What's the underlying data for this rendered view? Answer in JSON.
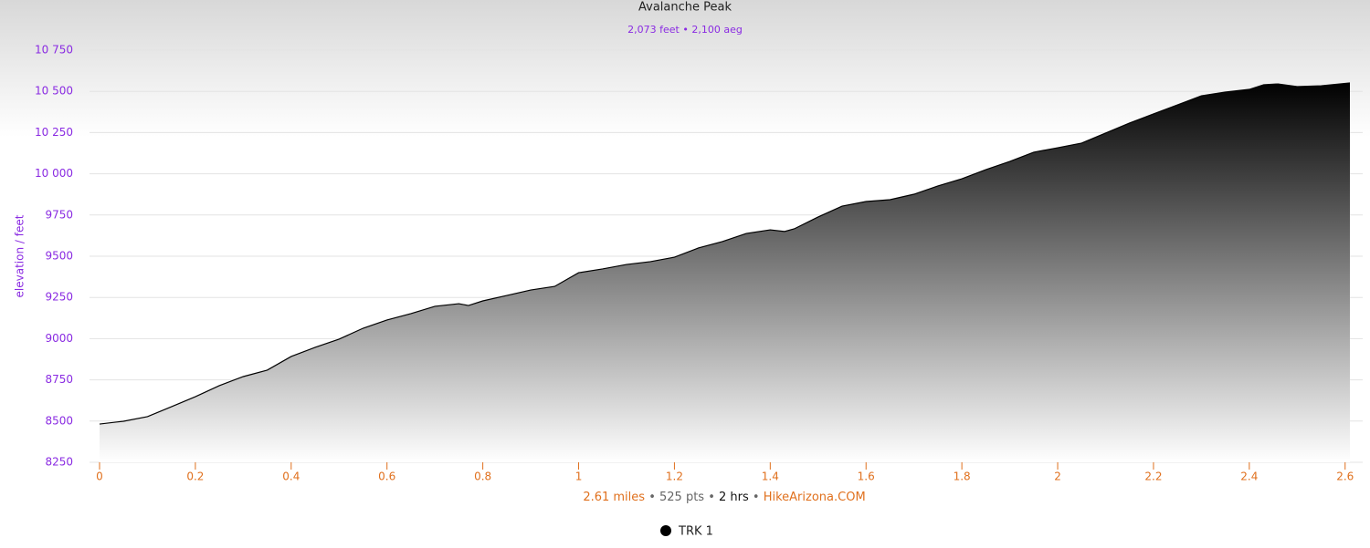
{
  "chart_data": {
    "type": "area",
    "title": "Avalanche Peak",
    "subtitle": "2,073 feet • 2,100 aeg",
    "y_label": "elevation / feet",
    "x": [
      0,
      0.05,
      0.1,
      0.15,
      0.2,
      0.25,
      0.3,
      0.35,
      0.4,
      0.45,
      0.5,
      0.55,
      0.6,
      0.65,
      0.7,
      0.75,
      0.77,
      0.8,
      0.85,
      0.9,
      0.95,
      1.0,
      1.05,
      1.1,
      1.15,
      1.2,
      1.25,
      1.3,
      1.35,
      1.4,
      1.43,
      1.45,
      1.5,
      1.55,
      1.6,
      1.65,
      1.7,
      1.75,
      1.8,
      1.85,
      1.9,
      1.95,
      2.0,
      2.05,
      2.1,
      2.15,
      2.2,
      2.25,
      2.3,
      2.35,
      2.4,
      2.43,
      2.46,
      2.5,
      2.55,
      2.61
    ],
    "series": [
      {
        "name": "TRK 1",
        "color": "#000000",
        "values": [
          8482,
          8499,
          8527,
          8587,
          8648,
          8715,
          8770,
          8809,
          8892,
          8947,
          8997,
          9063,
          9113,
          9152,
          9196,
          9212,
          9201,
          9229,
          9262,
          9295,
          9317,
          9400,
          9423,
          9450,
          9467,
          9494,
          9550,
          9589,
          9638,
          9660,
          9650,
          9666,
          9738,
          9804,
          9832,
          9843,
          9876,
          9926,
          9970,
          10025,
          10075,
          10131,
          10158,
          10186,
          10247,
          10308,
          10363,
          10418,
          10473,
          10496,
          10512,
          10540,
          10545,
          10529,
          10534,
          10551
        ]
      }
    ],
    "xlim": [
      0,
      2.61
    ],
    "ylim": [
      8250,
      10750
    ],
    "xticks": [
      0,
      0.2,
      0.4,
      0.6,
      0.8,
      1,
      1.2,
      1.4,
      1.6,
      1.8,
      2,
      2.2,
      2.4,
      2.6
    ],
    "yticks": [
      8250,
      8500,
      8750,
      9000,
      9250,
      9500,
      9750,
      {
        "value": 10000,
        "label": "10 000"
      },
      {
        "value": 10250,
        "label": "10 250"
      },
      {
        "value": 10500,
        "label": "10 500"
      },
      {
        "value": 10750,
        "label": "10 750"
      }
    ],
    "grid": true,
    "footer": [
      "2.61 miles",
      "525 pts",
      "2 hrs",
      "HikeArizona.COM"
    ],
    "footer_separator": "•"
  }
}
